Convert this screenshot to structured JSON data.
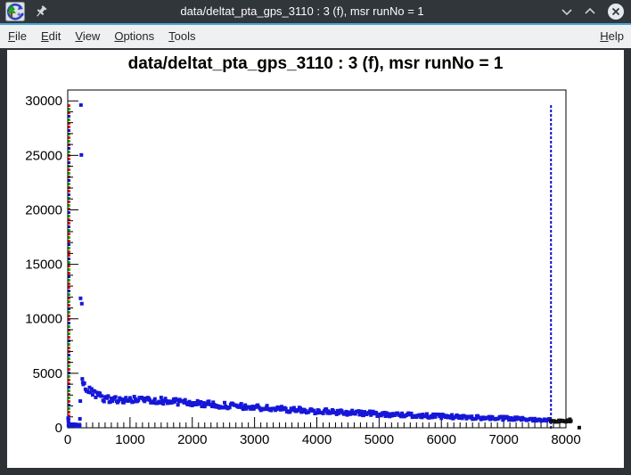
{
  "window": {
    "title": "data/deltat_pta_gps_3110 : 3 (f), msr runNo = 1",
    "app_icon": "root-logo-icon",
    "pin": "pin-icon",
    "controls": {
      "minimize": "chevron-down",
      "maximize": "chevron-up",
      "close": "x-circle"
    }
  },
  "menu": {
    "items": [
      {
        "label": "File",
        "mnemonic": "F"
      },
      {
        "label": "Edit",
        "mnemonic": "E"
      },
      {
        "label": "View",
        "mnemonic": "V"
      },
      {
        "label": "Options",
        "mnemonic": "O"
      },
      {
        "label": "Tools",
        "mnemonic": "T"
      }
    ],
    "help": {
      "label": "Help",
      "mnemonic": "H"
    }
  },
  "colors": {
    "accent_line": "#4aa5d8",
    "marker_blue": "#1616d9",
    "t0_red": "#e8170b",
    "t0_green": "#0faf0f",
    "last_good_blue": "#0d0dcc",
    "black": "#111111"
  },
  "chart_data": {
    "type": "scatter",
    "title": "data/deltat_pta_gps_3110 : 3 (f), msr runNo = 1",
    "xlabel": "",
    "ylabel": "",
    "xlim": [
      0,
      8000
    ],
    "ylim": [
      0,
      31000
    ],
    "x_ticks": [
      0,
      1000,
      2000,
      3000,
      4000,
      5000,
      6000,
      7000,
      8000
    ],
    "x_minor_step": 100,
    "y_ticks": [
      0,
      5000,
      10000,
      15000,
      20000,
      25000,
      30000
    ],
    "y_minor_step": 1000,
    "grid": false,
    "legend": null,
    "marker": "filled-square",
    "vlines": {
      "t0_multicolor_x": 20,
      "last_good_blue_x": 7760
    },
    "first_bins": [
      [
        6,
        880
      ],
      [
        10,
        620
      ],
      [
        16,
        390
      ],
      [
        24,
        250
      ],
      [
        34,
        185
      ]
    ],
    "pre_t0_row": {
      "x_start": 12,
      "x_end": 195,
      "step": 9,
      "level": 230,
      "spread": 100
    },
    "peak_points": [
      [
        196,
        820
      ],
      [
        202,
        2450
      ],
      [
        206,
        11880
      ],
      [
        212,
        29620
      ],
      [
        219,
        25040
      ],
      [
        226,
        11390
      ],
      [
        234,
        4490
      ],
      [
        242,
        4150
      ]
    ],
    "decay_envelope": {
      "x": [
        250,
        300,
        350,
        400,
        450,
        500,
        550,
        600,
        650,
        700,
        800,
        900,
        1000,
        1100,
        1200,
        1300,
        1400,
        1500,
        1600,
        1800,
        2000,
        2200,
        2400,
        2600,
        2800,
        3000,
        3200,
        3400,
        3600,
        3800,
        4000,
        4250,
        4500,
        4750,
        5000,
        5250,
        5500,
        5750,
        6000,
        6250,
        6500,
        6750,
        7000,
        7250,
        7500,
        7760
      ],
      "y": [
        3850,
        3600,
        3380,
        3200,
        3020,
        2880,
        2780,
        2700,
        2650,
        2600,
        2550,
        2530,
        2550,
        2590,
        2610,
        2590,
        2550,
        2500,
        2450,
        2360,
        2270,
        2180,
        2090,
        2010,
        1930,
        1860,
        1790,
        1720,
        1660,
        1590,
        1530,
        1460,
        1390,
        1330,
        1270,
        1210,
        1160,
        1100,
        1050,
        1000,
        950,
        905,
        860,
        815,
        770,
        720
      ]
    },
    "scatter_amp": {
      "at_start": 330,
      "at_end": 140
    },
    "tail_black": {
      "x_start": 7760,
      "x_end": 8090,
      "step": 16,
      "level": 620,
      "spread": 85
    },
    "black_outliers": [
      [
        8064,
        780
      ],
      [
        8214,
        15
      ]
    ]
  }
}
